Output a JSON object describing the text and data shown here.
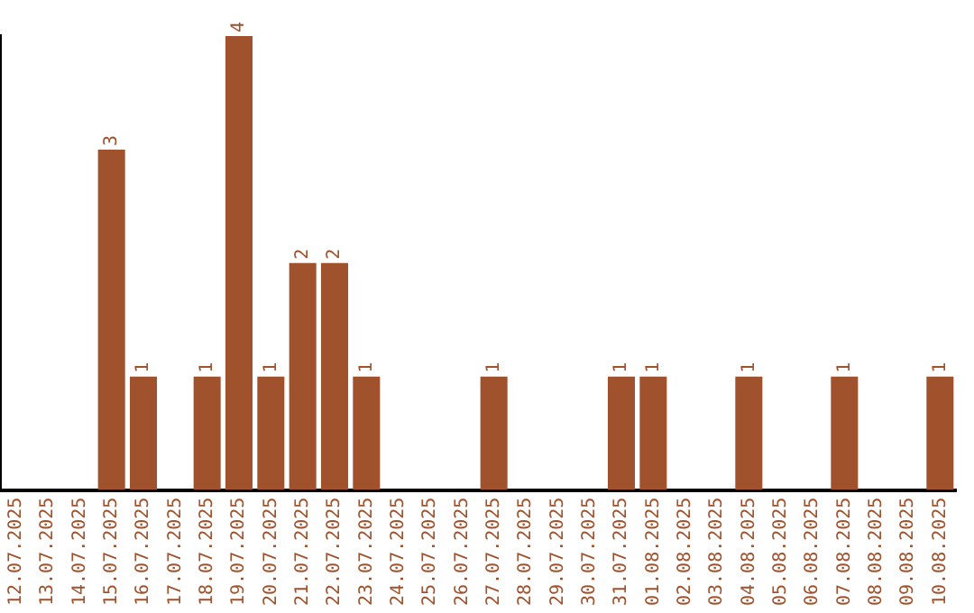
{
  "chart_data": {
    "type": "bar",
    "categories": [
      "12.07.2025",
      "13.07.2025",
      "14.07.2025",
      "15.07.2025",
      "16.07.2025",
      "17.07.2025",
      "18.07.2025",
      "19.07.2025",
      "20.07.2025",
      "21.07.2025",
      "22.07.2025",
      "23.07.2025",
      "24.07.2025",
      "25.07.2025",
      "26.07.2025",
      "27.07.2025",
      "28.07.2025",
      "29.07.2025",
      "30.07.2025",
      "31.07.2025",
      "01.08.2025",
      "02.08.2025",
      "03.08.2025",
      "04.08.2025",
      "05.08.2025",
      "06.08.2025",
      "07.08.2025",
      "08.08.2025",
      "09.08.2025",
      "10.08.2025"
    ],
    "values": [
      0,
      0,
      0,
      3,
      1,
      0,
      1,
      4,
      1,
      2,
      2,
      1,
      0,
      0,
      0,
      1,
      0,
      0,
      0,
      1,
      1,
      0,
      0,
      1,
      0,
      0,
      1,
      0,
      0,
      1
    ],
    "value_labels": [
      null,
      null,
      null,
      "3",
      "1",
      null,
      "1",
      "4",
      "1",
      "2",
      "2",
      "1",
      null,
      null,
      null,
      "1",
      null,
      null,
      null,
      "1",
      "1",
      null,
      null,
      "1",
      null,
      null,
      "1",
      null,
      null,
      "1"
    ],
    "color": "#a0522d",
    "ylim": [
      0,
      4
    ],
    "tick_labels": "x",
    "grid": false,
    "legend": false
  }
}
